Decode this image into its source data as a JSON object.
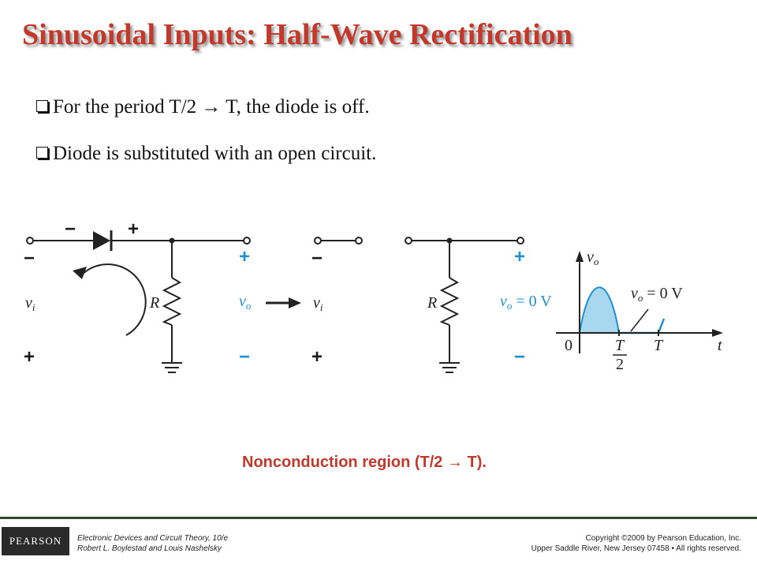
{
  "title": "Sinusoidal Inputs: Half-Wave Rectification",
  "bullets": [
    "For the period  T/2 → T, the diode is off.",
    "Diode is substituted with an open circuit."
  ],
  "figure": {
    "circuit_1": {
      "diode_minus": "−",
      "diode_plus": "+",
      "in_top": "−",
      "in_label": {
        "v": "v",
        "sub": "i"
      },
      "in_bottom": "+",
      "resistor": "R",
      "out_top": "+",
      "out_label": {
        "v": "v",
        "sub": "o"
      },
      "out_bottom": "−"
    },
    "circuit_2": {
      "in_top": "−",
      "in_label": {
        "v": "v",
        "sub": "i"
      },
      "in_bottom": "+",
      "resistor": "R",
      "out_top": "+",
      "out_label": {
        "v": "v",
        "sub": "o",
        "rest": " = 0 V"
      },
      "out_bottom": "−"
    },
    "graph": {
      "y_label": {
        "v": "v",
        "sub": "o"
      },
      "annotation": {
        "v": "v",
        "sub": "o",
        "rest": " = 0 V"
      },
      "origin": "0",
      "half_num": "T",
      "half_den": "2",
      "period": "T",
      "x_label": "t"
    },
    "caption": "Nonconduction region (T/2 → T)."
  },
  "footer": {
    "logo": "PEARSON",
    "book": [
      "Electronic Devices and Circuit Theory, 10/e",
      "Robert L. Boylestad and Louis Nashelsky"
    ],
    "copyright": [
      "Copyright ©2009 by Pearson Education, Inc.",
      "Upper Saddle River, New Jersey 07458 • All rights reserved."
    ]
  }
}
